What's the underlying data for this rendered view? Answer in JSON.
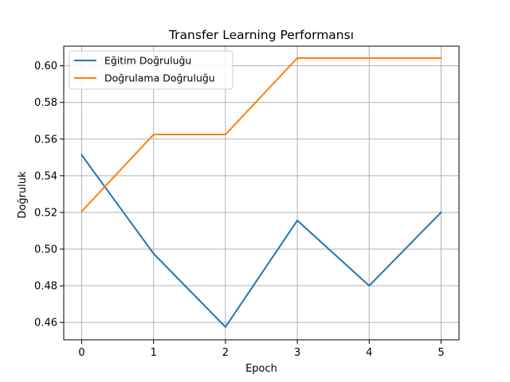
{
  "chart_data": {
    "type": "line",
    "title": "Transfer Learning Performansı",
    "xlabel": "Epoch",
    "ylabel": "Doğruluk",
    "x": [
      0,
      1,
      2,
      3,
      4,
      5
    ],
    "xticks": [
      "0",
      "1",
      "2",
      "3",
      "4",
      "5"
    ],
    "yticks": [
      "0.46",
      "0.48",
      "0.50",
      "0.52",
      "0.54",
      "0.56",
      "0.58",
      "0.60"
    ],
    "xlim": [
      -0.25,
      5.25
    ],
    "ylim": [
      0.4505,
      0.6107
    ],
    "grid": true,
    "legend_position": "top-left",
    "series": [
      {
        "name": "Eğitim Doğruluğu",
        "color": "#1f77b4",
        "values": [
          0.5513,
          0.4975,
          0.4575,
          0.5156,
          0.48,
          0.52
        ]
      },
      {
        "name": "Doğrulama Doğruluğu",
        "color": "#ff7f0e",
        "values": [
          0.5206,
          0.5625,
          0.5625,
          0.6042,
          0.6042,
          0.6042
        ]
      }
    ]
  }
}
